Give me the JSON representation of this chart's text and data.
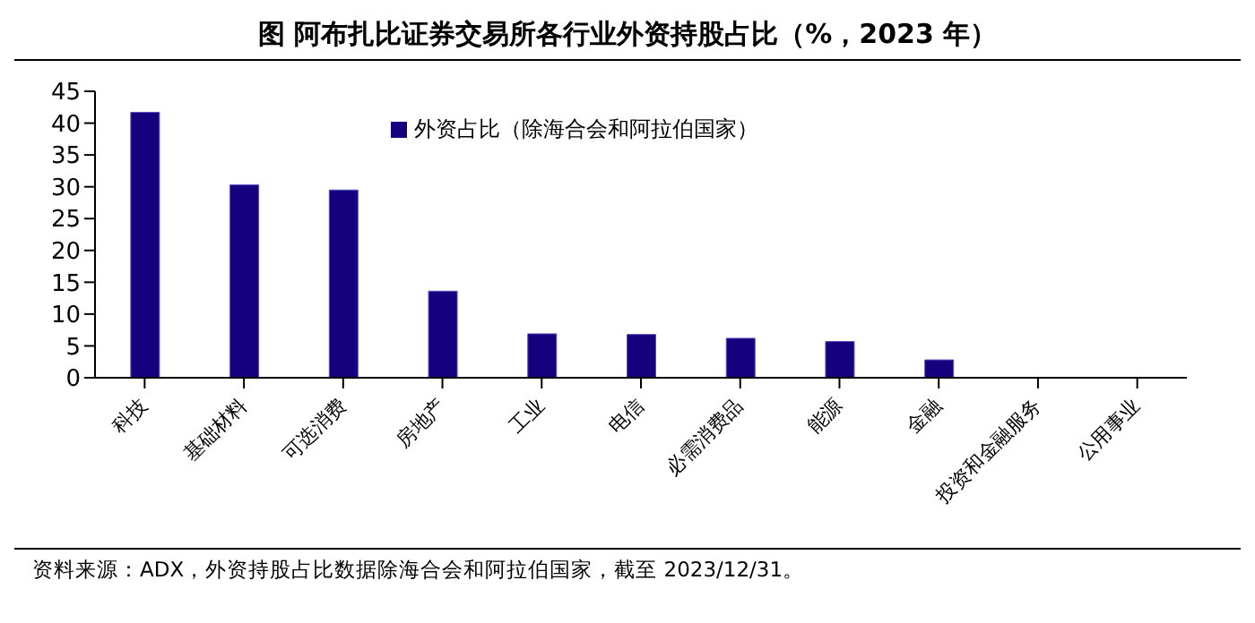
{
  "chart_data": {
    "type": "bar",
    "title": "图  阿布扎比证券交易所各行业外资持股占比（%，2023 年）",
    "categories": [
      "科技",
      "基础材料",
      "可选消费",
      "房地产",
      "工业",
      "电信",
      "必需消费品",
      "能源",
      "金融",
      "投资和金融服务",
      "公用事业"
    ],
    "series": [
      {
        "name": "外资占比（除海合会和阿拉伯国家）",
        "color": "#15007e",
        "values": [
          41.7,
          30.3,
          29.5,
          13.6,
          6.9,
          6.8,
          6.2,
          5.7,
          2.8,
          0,
          0
        ]
      }
    ],
    "ylim": [
      0,
      45
    ],
    "yticks": [
      0,
      5,
      10,
      15,
      20,
      25,
      30,
      35,
      40,
      45
    ],
    "grid": false,
    "legend": "top",
    "annotations": [
      "资料来源：ADX，外资持股占比数据除海合会和阿拉伯国家，截至 2023/12/31。"
    ]
  }
}
